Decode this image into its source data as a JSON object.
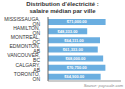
{
  "chart_data": {
    "type": "bar",
    "orientation": "horizontal",
    "title": "Distribution d’électricité :\nsalaire médian par ville",
    "annotation": "Source: payscale.com",
    "categories": [
      "MISSISSAUGA, ON",
      "HAMILTON, ON",
      "MONTREAL, QC",
      "EDMONTON, AB",
      "VANCOUVER, BC",
      "CALGARY, AB",
      "TORONTO, ON"
    ],
    "values": [
      71000,
      48333,
      64111,
      61333,
      68000,
      70750,
      64900
    ],
    "value_labels": [
      "$71,000.00",
      "$48,333.00",
      "$64,111.00",
      "$61,333.00",
      "$68,000.00",
      "$70,750.00",
      "$64,900.00"
    ],
    "data_labels": true,
    "color": "#6aaee0",
    "xlim": [
      0,
      90000
    ],
    "tick_labels": "y",
    "grid": false
  }
}
